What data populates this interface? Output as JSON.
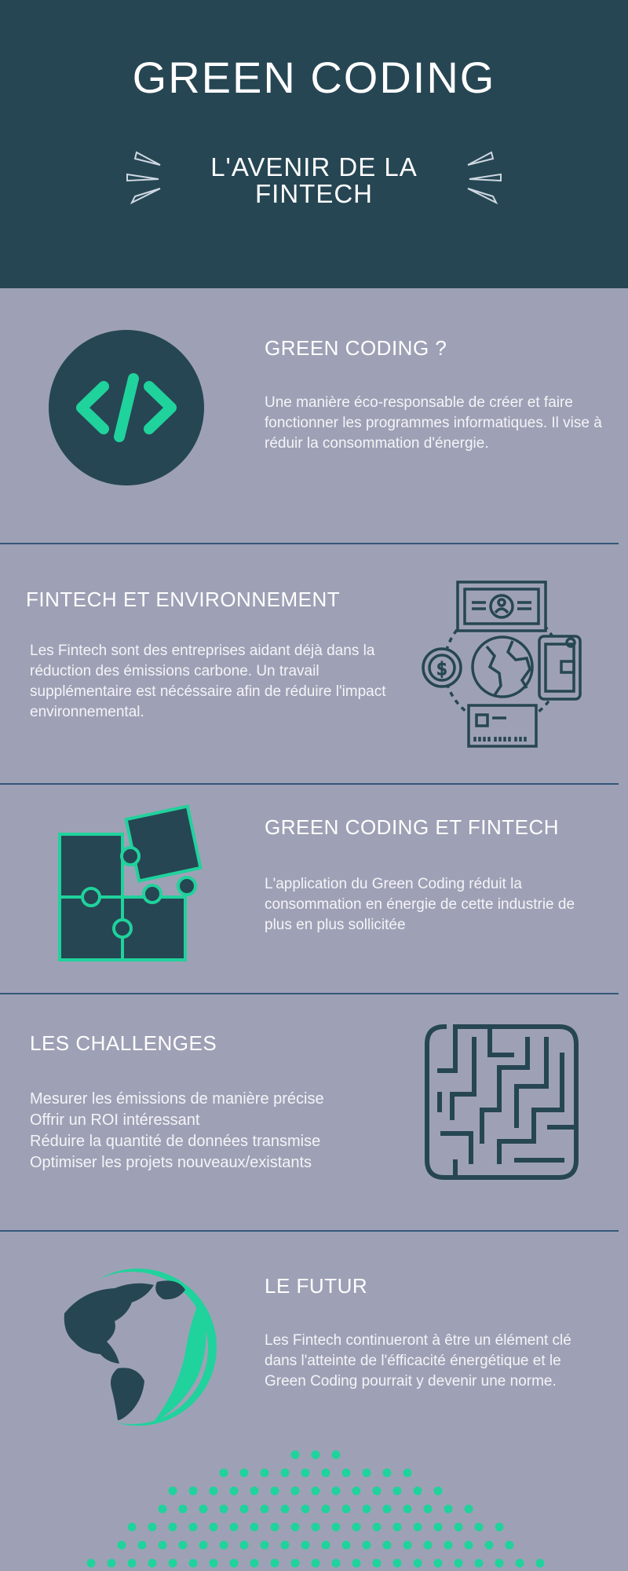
{
  "header": {
    "title": "GREEN CODING",
    "subtitle_line1": "L'AVENIR DE LA",
    "subtitle_line2": "FINTECH"
  },
  "sections": [
    {
      "heading": "GREEN CODING ?",
      "text": "Une manière éco-responsable de créer et faire fonctionner les programmes informatiques. Il vise à réduir la consommation d'énergie.",
      "icon": "code-icon"
    },
    {
      "heading": "FINTECH ET ENVIRONNEMENT",
      "text": "Les Fintech sont des entreprises aidant déjà dans la réduction des émissions carbone. Un travail supplémentaire est nécéssaire afin de réduire l'impact environnemental.",
      "icon": "finance-globe-icon"
    },
    {
      "heading": "GREEN CODING ET FINTECH",
      "text": "L'application du Green Coding réduit la consommation en énergie de cette industrie de plus en plus sollicitée",
      "icon": "puzzle-icon"
    },
    {
      "heading": "LES CHALLENGES",
      "items": [
        "Mesurer les émissions de manière précise",
        "Offrir un ROI intéressant",
        "Réduire la quantité de données transmise",
        "Optimiser les projets nouveaux/existants"
      ],
      "icon": "maze-icon"
    },
    {
      "heading": "LE FUTUR",
      "text": "Les Fintech continueront à être un élément clé dans l'atteinte de l'éfficacité énergétique et le Green Coding pourrait y devenir une norme.",
      "icon": "globe-leaf-icon"
    }
  ],
  "colors": {
    "dark": "#264653",
    "accent": "#20d29c",
    "background": "#9ea1b5",
    "divider": "#34577a"
  }
}
